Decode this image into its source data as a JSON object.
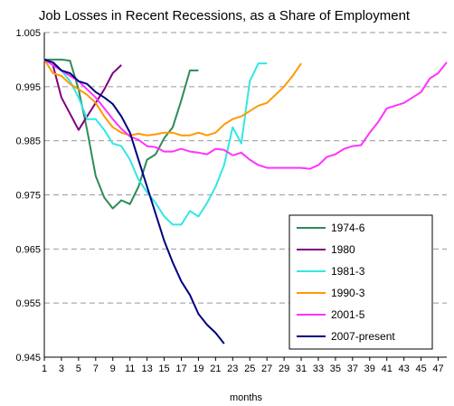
{
  "chart_data": {
    "type": "line",
    "title": "Job Losses in Recent Recessions, as a Share of Employment",
    "xlabel": "months",
    "ylabel": "",
    "xlim": [
      1,
      48
    ],
    "ylim": [
      0.945,
      1.005
    ],
    "x_tick_labels": [
      "1",
      "3",
      "5",
      "7",
      "9",
      "11",
      "13",
      "15",
      "17",
      "19",
      "21",
      "23",
      "25",
      "27",
      "29",
      "31",
      "33",
      "35",
      "37",
      "39",
      "41",
      "43",
      "45",
      "47"
    ],
    "y_tick_labels": [
      "0.945",
      "0.955",
      "0.965",
      "0.975",
      "0.985",
      "0.995",
      "1.005"
    ],
    "grid": "horizontal dashed",
    "legend_position": "bottom-right",
    "series": [
      {
        "name": "1974-6",
        "color": "#2e8b57",
        "x": [
          1,
          2,
          3,
          4,
          5,
          6,
          7,
          8,
          9,
          10,
          11,
          12,
          13,
          14,
          15,
          16,
          17,
          18,
          19
        ],
        "values": [
          1.0,
          1.0,
          1.0,
          0.9998,
          0.9945,
          0.987,
          0.9785,
          0.9745,
          0.9725,
          0.974,
          0.9733,
          0.9765,
          0.9815,
          0.9825,
          0.9855,
          0.9875,
          0.9925,
          0.998,
          0.998
        ]
      },
      {
        "name": "1980",
        "color": "#800080",
        "x": [
          1,
          2,
          3,
          4,
          5,
          6,
          7,
          8,
          9,
          10
        ],
        "values": [
          1.0,
          0.999,
          0.993,
          0.99,
          0.987,
          0.9895,
          0.992,
          0.9945,
          0.9975,
          0.999
        ]
      },
      {
        "name": "1981-3",
        "color": "#33e6e6",
        "x": [
          1,
          2,
          3,
          4,
          5,
          6,
          7,
          8,
          9,
          10,
          11,
          12,
          13,
          14,
          15,
          16,
          17,
          18,
          19,
          20,
          21,
          22,
          23,
          24,
          25,
          26,
          27
        ],
        "values": [
          1.0,
          0.999,
          0.998,
          0.996,
          0.993,
          0.989,
          0.989,
          0.987,
          0.9845,
          0.984,
          0.9815,
          0.9778,
          0.9755,
          0.9735,
          0.971,
          0.9695,
          0.9695,
          0.972,
          0.971,
          0.9735,
          0.9765,
          0.9805,
          0.9875,
          0.9845,
          0.996,
          0.9993,
          0.9993
        ]
      },
      {
        "name": "1990-3",
        "color": "#ff9900",
        "x": [
          1,
          2,
          3,
          4,
          5,
          6,
          7,
          8,
          9,
          10,
          11,
          12,
          13,
          14,
          15,
          16,
          17,
          18,
          19,
          20,
          21,
          22,
          23,
          24,
          25,
          26,
          27,
          28,
          29,
          30,
          31
        ],
        "values": [
          1.0,
          0.9975,
          0.997,
          0.9955,
          0.9945,
          0.9935,
          0.992,
          0.9895,
          0.9875,
          0.9865,
          0.986,
          0.9863,
          0.986,
          0.9862,
          0.9865,
          0.9865,
          0.986,
          0.986,
          0.9865,
          0.986,
          0.9865,
          0.988,
          0.989,
          0.9895,
          0.9905,
          0.9915,
          0.992,
          0.9935,
          0.995,
          0.997,
          0.9993
        ]
      },
      {
        "name": "2001-5",
        "color": "#ff33ff",
        "x": [
          1,
          2,
          3,
          4,
          5,
          6,
          7,
          8,
          9,
          10,
          11,
          12,
          13,
          14,
          15,
          16,
          17,
          18,
          19,
          20,
          21,
          22,
          23,
          24,
          25,
          26,
          27,
          28,
          29,
          30,
          31,
          32,
          33,
          34,
          35,
          36,
          37,
          38,
          39,
          40,
          41,
          42,
          43,
          44,
          45,
          46,
          47,
          48
        ],
        "values": [
          1.0,
          0.999,
          0.998,
          0.997,
          0.996,
          0.9945,
          0.993,
          0.991,
          0.989,
          0.9872,
          0.9858,
          0.9852,
          0.984,
          0.9838,
          0.983,
          0.983,
          0.9835,
          0.983,
          0.9828,
          0.9825,
          0.9835,
          0.9833,
          0.9823,
          0.9828,
          0.9815,
          0.9805,
          0.98,
          0.98,
          0.98,
          0.98,
          0.98,
          0.9798,
          0.9805,
          0.982,
          0.9825,
          0.9835,
          0.984,
          0.9842,
          0.9865,
          0.9885,
          0.991,
          0.9915,
          0.992,
          0.993,
          0.994,
          0.9965,
          0.9975,
          0.9995
        ]
      },
      {
        "name": "2007-present",
        "color": "#000080",
        "x": [
          1,
          2,
          3,
          4,
          5,
          6,
          7,
          8,
          9,
          10,
          11,
          12,
          13,
          14,
          15,
          16,
          17,
          18,
          19,
          20,
          21,
          22
        ],
        "values": [
          1.0,
          0.9995,
          0.998,
          0.9975,
          0.996,
          0.9955,
          0.994,
          0.993,
          0.9918,
          0.9895,
          0.9865,
          0.9815,
          0.9765,
          0.9715,
          0.9665,
          0.9625,
          0.959,
          0.9565,
          0.953,
          0.951,
          0.9495,
          0.9475
        ]
      }
    ]
  }
}
